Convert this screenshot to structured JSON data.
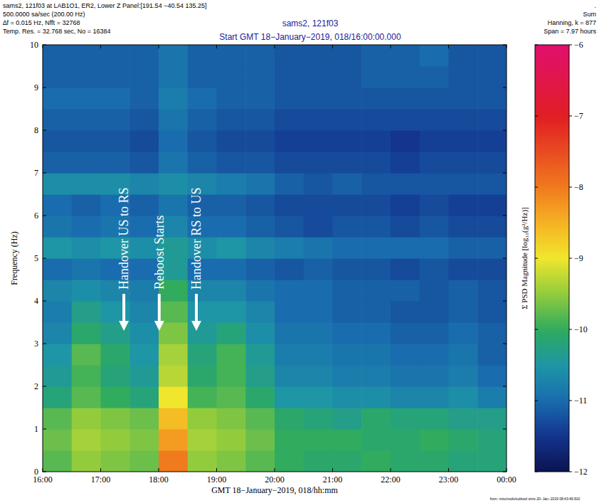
{
  "chart_data": {
    "type": "heatmap",
    "title": "sams2, 121f03",
    "subtitle": "Start GMT 18−January−2019, 018/16:00:00.000",
    "header": [
      "sams2, 121f03 at LAB1O1, ER2, Lower Z Panel:[191.54 −40.54 135.25]",
      "500.0000 sa/sec (200.00 Hz)",
      "∆f = 0.015 Hz,  Nfft = 32768",
      "Temp. Res. = 32.768 sec, No = 16384"
    ],
    "header_right": [
      ".",
      "Sum",
      "Hanning, k = 877",
      "Span = 7.97 hours"
    ],
    "footer": "from: misc/vods/subtool sims 20−Jan−2019 08:43:49.910",
    "x_label": "GMT 18−January−2019, 018/hh:mm",
    "y_label": "Frequency (Hz)",
    "xlim": [
      16,
      24
    ],
    "xticks": [
      {
        "value": 16,
        "label": "16:00"
      },
      {
        "value": 17,
        "label": "17:00"
      },
      {
        "value": 18,
        "label": "18:00"
      },
      {
        "value": 19,
        "label": "19:00"
      },
      {
        "value": 20,
        "label": "20:00"
      },
      {
        "value": 21,
        "label": "21:00"
      },
      {
        "value": 22,
        "label": "22:00"
      },
      {
        "value": 23,
        "label": "23:00"
      },
      {
        "value": 24,
        "label": "00:00"
      }
    ],
    "ylim": [
      0,
      10
    ],
    "yticks": [
      0,
      1,
      2,
      3,
      4,
      5,
      6,
      7,
      8,
      9,
      10
    ],
    "x_bins": [
      16,
      16.5,
      17,
      17.5,
      18,
      18.5,
      19,
      19.5,
      20,
      20.5,
      21,
      21.5,
      22,
      22.5,
      23,
      23.5,
      24
    ],
    "y_bins": [
      0,
      0.5,
      1,
      1.5,
      2,
      2.5,
      3,
      3.5,
      4,
      4.5,
      5,
      5.5,
      6,
      6.5,
      7,
      7.5,
      8,
      8.5,
      9,
      9.5,
      10
    ],
    "values": [
      [
        -9.8,
        -9.5,
        -9.6,
        -9.7,
        -8.0,
        -9.5,
        -9.6,
        -9.8,
        -10.0,
        -10.1,
        -10.1,
        -10.0,
        -10.1,
        -10.1,
        -10.2,
        -10.2
      ],
      [
        -9.7,
        -9.4,
        -9.5,
        -9.6,
        -8.3,
        -9.4,
        -9.5,
        -9.7,
        -10.0,
        -10.0,
        -10.0,
        -10.1,
        -10.1,
        -10.0,
        -10.1,
        -10.2
      ],
      [
        -9.8,
        -9.5,
        -9.6,
        -9.7,
        -8.6,
        -9.5,
        -9.6,
        -9.8,
        -10.1,
        -10.2,
        -10.3,
        -10.1,
        -10.2,
        -10.2,
        -10.3,
        -10.3
      ],
      [
        -10.2,
        -9.8,
        -10.0,
        -10.2,
        -9.0,
        -9.9,
        -9.8,
        -10.1,
        -10.5,
        -10.5,
        -10.6,
        -10.6,
        -10.7,
        -10.7,
        -10.6,
        -10.8
      ],
      [
        -10.4,
        -9.9,
        -10.2,
        -10.4,
        -9.3,
        -10.1,
        -9.9,
        -10.3,
        -10.7,
        -10.7,
        -10.8,
        -10.8,
        -10.9,
        -10.9,
        -10.8,
        -11.0
      ],
      [
        -10.5,
        -9.8,
        -10.1,
        -10.5,
        -9.4,
        -10.2,
        -9.9,
        -10.4,
        -10.8,
        -10.8,
        -10.9,
        -10.9,
        -11.0,
        -11.0,
        -10.9,
        -11.1
      ],
      [
        -10.7,
        -10.1,
        -10.3,
        -10.6,
        -9.6,
        -10.4,
        -10.2,
        -10.6,
        -10.9,
        -10.9,
        -11.0,
        -11.0,
        -11.1,
        -11.1,
        -11.0,
        -11.1
      ],
      [
        -10.8,
        -10.3,
        -10.5,
        -10.7,
        -9.8,
        -10.5,
        -10.5,
        -10.7,
        -11.0,
        -11.0,
        -11.1,
        -11.1,
        -11.2,
        -11.2,
        -11.1,
        -11.2
      ],
      [
        -10.7,
        -10.6,
        -10.7,
        -10.8,
        -10.0,
        -10.7,
        -10.7,
        -10.9,
        -11.0,
        -11.0,
        -11.1,
        -11.1,
        -11.1,
        -11.2,
        -11.1,
        -11.2
      ],
      [
        -11.0,
        -10.9,
        -11.0,
        -11.0,
        -10.4,
        -11.0,
        -11.0,
        -11.1,
        -11.2,
        -11.1,
        -11.2,
        -11.2,
        -11.3,
        -11.2,
        -11.3,
        -11.3
      ],
      [
        -10.5,
        -10.6,
        -10.5,
        -10.6,
        -10.4,
        -10.6,
        -10.5,
        -10.7,
        -10.8,
        -10.9,
        -11.0,
        -11.0,
        -11.0,
        -11.0,
        -11.1,
        -11.1
      ],
      [
        -10.9,
        -11.0,
        -10.9,
        -11.0,
        -10.7,
        -11.0,
        -11.0,
        -11.1,
        -11.2,
        -11.3,
        -11.2,
        -11.2,
        -11.3,
        -11.2,
        -11.3,
        -11.3
      ],
      [
        -11.0,
        -11.1,
        -11.0,
        -11.1,
        -10.9,
        -11.1,
        -11.1,
        -11.2,
        -11.3,
        -11.3,
        -11.3,
        -11.3,
        -11.4,
        -11.3,
        -11.4,
        -11.4
      ],
      [
        -10.6,
        -10.6,
        -10.6,
        -10.7,
        -10.6,
        -10.7,
        -10.8,
        -10.9,
        -11.1,
        -11.2,
        -11.1,
        -11.2,
        -11.2,
        -11.2,
        -11.2,
        -11.2
      ],
      [
        -11.1,
        -11.1,
        -11.1,
        -11.2,
        -10.9,
        -11.1,
        -11.2,
        -11.2,
        -11.3,
        -11.3,
        -11.3,
        -11.3,
        -11.4,
        -11.3,
        -11.3,
        -11.3
      ],
      [
        -11.2,
        -11.2,
        -11.2,
        -11.3,
        -11.0,
        -11.2,
        -11.3,
        -11.3,
        -11.4,
        -11.4,
        -11.4,
        -11.4,
        -11.5,
        -11.4,
        -11.4,
        -11.4
      ],
      [
        -11.1,
        -11.1,
        -11.1,
        -11.2,
        -10.9,
        -11.1,
        -11.2,
        -11.2,
        -11.3,
        -11.3,
        -11.3,
        -11.3,
        -11.3,
        -11.3,
        -11.3,
        -11.3
      ],
      [
        -11.0,
        -11.0,
        -11.0,
        -11.1,
        -10.8,
        -11.0,
        -11.1,
        -11.1,
        -11.2,
        -11.2,
        -11.2,
        -11.2,
        -11.2,
        -11.2,
        -11.2,
        -11.2
      ],
      [
        -11.1,
        -11.1,
        -11.1,
        -11.1,
        -10.9,
        -11.1,
        -11.1,
        -11.1,
        -11.2,
        -11.2,
        -11.2,
        -11.1,
        -11.1,
        -11.1,
        -11.2,
        -11.2
      ],
      [
        -11.1,
        -11.1,
        -11.1,
        -11.1,
        -10.9,
        -11.1,
        -11.1,
        -11.1,
        -11.2,
        -11.2,
        -11.2,
        -11.1,
        -11.1,
        -11.0,
        -11.2,
        -11.2
      ]
    ],
    "colorbar": {
      "label": "Σ PSD Magnitude [log₁₀(g²/Hz)]",
      "range": [
        -12,
        -6
      ],
      "ticks": [
        -6,
        -7,
        -8,
        -9,
        -10,
        -11,
        -12
      ]
    },
    "annotations": [
      {
        "text": "Handover US to RS",
        "x": 17.4,
        "y": 3.3
      },
      {
        "text": "Reboost Starts",
        "x": 18.01,
        "y": 3.3
      },
      {
        "text": "Handover RS to US",
        "x": 18.65,
        "y": 3.3
      }
    ]
  }
}
